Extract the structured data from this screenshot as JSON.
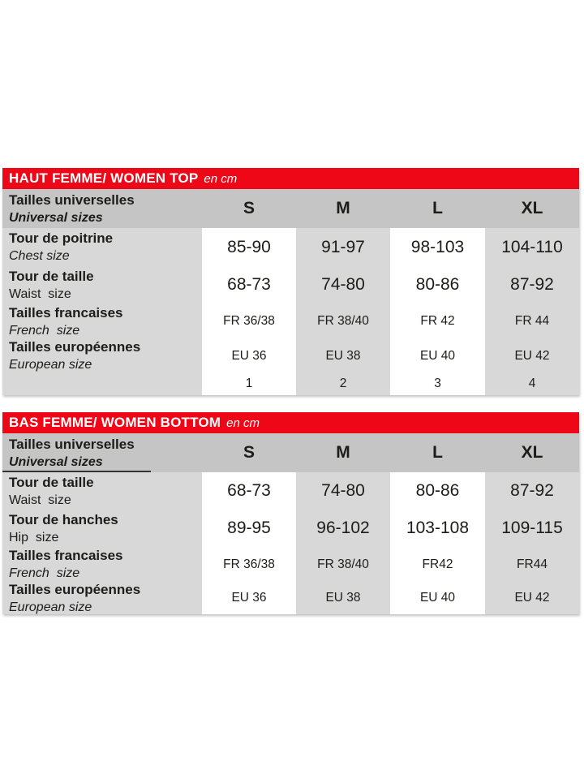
{
  "colors": {
    "header_red": "#ee0716",
    "header_row_gray": "#c5c5c5",
    "cell_gray": "#d8d8d8",
    "cell_white": "#ffffff",
    "text": "#1c1c1a",
    "header_text": "#ffffff"
  },
  "tables": [
    {
      "title": "HAUT FEMME/ WOMEN TOP",
      "unit": "en cm",
      "header": {
        "fr": "Tailles universelles",
        "en": "Universal sizes",
        "sizes": [
          "S",
          "M",
          "L",
          "XL"
        ]
      },
      "rows": [
        {
          "fr": "Tour de poitrine",
          "en": "Chest size",
          "values": [
            "85-90",
            "91-97",
            "98-103",
            "104-110"
          ]
        },
        {
          "fr": "Tour de taille",
          "en": "Waist  size",
          "values": [
            "68-73",
            "74-80",
            "80-86",
            "87-92"
          ]
        },
        {
          "fr": "Tailles francaises",
          "en": "French  size",
          "values": [
            "FR 36/38",
            "FR 38/40",
            "FR 42",
            "FR 44"
          ]
        },
        {
          "fr": "Tailles européennes",
          "en": "European size",
          "values": [
            "EU 36",
            "EU 38",
            "EU 40",
            "EU 42"
          ]
        },
        {
          "fr": "",
          "en": "",
          "values": [
            "1",
            "2",
            "3",
            "4"
          ]
        }
      ]
    },
    {
      "title": "BAS FEMME/ WOMEN BOTTOM",
      "unit": "en cm",
      "header": {
        "fr": "Tailles universelles",
        "en": "Universal sizes",
        "sizes": [
          "S",
          "M",
          "L",
          "XL"
        ]
      },
      "rows": [
        {
          "fr": "Tour de taille",
          "en": "Waist  size",
          "values": [
            "68-73",
            "74-80",
            "80-86",
            "87-92"
          ]
        },
        {
          "fr": "Tour de hanches",
          "en": "Hip  size",
          "values": [
            "89-95",
            "96-102",
            "103-108",
            "109-115"
          ]
        },
        {
          "fr": "Tailles francaises",
          "en": "French  size",
          "values": [
            "FR 36/38",
            "FR 38/40",
            "FR42",
            "FR44"
          ]
        },
        {
          "fr": "Tailles européennes",
          "en": "European size",
          "values": [
            "EU 36",
            "EU 38",
            "EU 40",
            "EU 42"
          ]
        }
      ]
    }
  ],
  "chart_data": [
    {
      "type": "table",
      "title": "HAUT FEMME/ WOMEN TOP en cm",
      "columns": [
        "",
        "S",
        "M",
        "L",
        "XL"
      ],
      "rows": [
        [
          "Tour de poitrine / Chest size",
          "85-90",
          "91-97",
          "98-103",
          "104-110"
        ],
        [
          "Tour de taille / Waist size",
          "68-73",
          "74-80",
          "80-86",
          "87-92"
        ],
        [
          "Tailles francaises / French size",
          "FR 36/38",
          "FR 38/40",
          "FR 42",
          "FR 44"
        ],
        [
          "Tailles européennes / European size",
          "EU 36",
          "EU 38",
          "EU 40",
          "EU 42"
        ],
        [
          "",
          "1",
          "2",
          "3",
          "4"
        ]
      ]
    },
    {
      "type": "table",
      "title": "BAS FEMME/ WOMEN BOTTOM en cm",
      "columns": [
        "",
        "S",
        "M",
        "L",
        "XL"
      ],
      "rows": [
        [
          "Tour de taille / Waist size",
          "68-73",
          "74-80",
          "80-86",
          "87-92"
        ],
        [
          "Tour de hanches / Hip size",
          "89-95",
          "96-102",
          "103-108",
          "109-115"
        ],
        [
          "Tailles francaises / French size",
          "FR 36/38",
          "FR 38/40",
          "FR42",
          "FR44"
        ],
        [
          "Tailles européennes / European size",
          "EU 36",
          "EU 38",
          "EU 40",
          "EU 42"
        ]
      ]
    }
  ]
}
